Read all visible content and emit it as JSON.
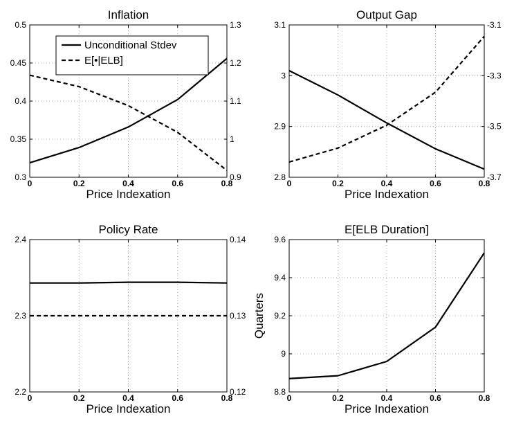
{
  "chart_data": [
    {
      "type": "line",
      "title": "Inflation",
      "xlabel": "Price Indexation",
      "ylabel": "",
      "x": [
        0,
        0.2,
        0.4,
        0.6,
        0.8
      ],
      "xlim": [
        0,
        0.8
      ],
      "xticks": [
        "0",
        "0.2",
        "0.4",
        "0.6",
        "0.8"
      ],
      "ylim": [
        0.3,
        0.5
      ],
      "yticks": [
        "0.3",
        "0.35",
        "0.4",
        "0.45",
        "0.5"
      ],
      "ylim_right": [
        0.9,
        1.3
      ],
      "yticks_right": [
        "0.9",
        "1",
        "1.1",
        "1.2",
        "1.3"
      ],
      "grid": true,
      "legend": {
        "placement": "top-left",
        "entries": [
          "Unconditional Stdev",
          "E[•|ELB]"
        ]
      },
      "series": [
        {
          "name": "Unconditional Stdev",
          "axis": "left",
          "style": "solid",
          "values": [
            0.319,
            0.339,
            0.366,
            0.402,
            0.456
          ]
        },
        {
          "name": "E[•|ELB]",
          "axis": "right",
          "style": "dashed",
          "values": [
            1.168,
            1.138,
            1.088,
            1.018,
            0.918
          ]
        }
      ]
    },
    {
      "type": "line",
      "title": "Output Gap",
      "xlabel": "Price Indexation",
      "ylabel": "",
      "x": [
        0,
        0.2,
        0.4,
        0.6,
        0.8
      ],
      "xlim": [
        0,
        0.8
      ],
      "xticks": [
        "0",
        "0.2",
        "0.4",
        "0.6",
        "0.8"
      ],
      "ylim": [
        2.8,
        3.1
      ],
      "yticks": [
        "2.8",
        "2.9",
        "3",
        "3.1"
      ],
      "ylim_right": [
        -3.7,
        -3.1
      ],
      "yticks_right": [
        "-3.7",
        "-3.5",
        "-3.3",
        "-3.1"
      ],
      "grid": true,
      "series": [
        {
          "name": "Unconditional Stdev",
          "axis": "left",
          "style": "solid",
          "values": [
            3.01,
            2.962,
            2.907,
            2.856,
            2.816
          ]
        },
        {
          "name": "E[•|ELB]",
          "axis": "right",
          "style": "dashed",
          "values": [
            -3.64,
            -3.585,
            -3.495,
            -3.365,
            -3.145
          ]
        }
      ]
    },
    {
      "type": "line",
      "title": "Policy Rate",
      "xlabel": "Price Indexation",
      "ylabel": "",
      "x": [
        0,
        0.2,
        0.4,
        0.6,
        0.8
      ],
      "xlim": [
        0,
        0.8
      ],
      "xticks": [
        "0",
        "0.2",
        "0.4",
        "0.6",
        "0.8"
      ],
      "ylim": [
        2.2,
        2.4
      ],
      "yticks": [
        "2.2",
        "2.3",
        "2.4"
      ],
      "ylim_right": [
        0.12,
        0.14
      ],
      "yticks_right": [
        "0.12",
        "0.13",
        "0.14"
      ],
      "grid": true,
      "series": [
        {
          "name": "Unconditional Stdev",
          "axis": "left",
          "style": "solid",
          "values": [
            2.343,
            2.343,
            2.344,
            2.344,
            2.343
          ]
        },
        {
          "name": "E[•|ELB]",
          "axis": "right",
          "style": "dashed",
          "values": [
            0.13,
            0.13,
            0.13,
            0.13,
            0.13
          ]
        }
      ]
    },
    {
      "type": "line",
      "title": "E[ELB Duration]",
      "xlabel": "Price Indexation",
      "ylabel": "Quarters",
      "x": [
        0,
        0.2,
        0.4,
        0.6,
        0.8
      ],
      "xlim": [
        0,
        0.8
      ],
      "xticks": [
        "0",
        "0.2",
        "0.4",
        "0.6",
        "0.8"
      ],
      "ylim": [
        8.8,
        9.6
      ],
      "yticks": [
        "8.8",
        "9",
        "9.2",
        "9.4",
        "9.6"
      ],
      "grid": true,
      "series": [
        {
          "name": "",
          "axis": "left",
          "style": "solid",
          "values": [
            8.87,
            8.885,
            8.96,
            9.14,
            9.53
          ]
        }
      ]
    }
  ]
}
